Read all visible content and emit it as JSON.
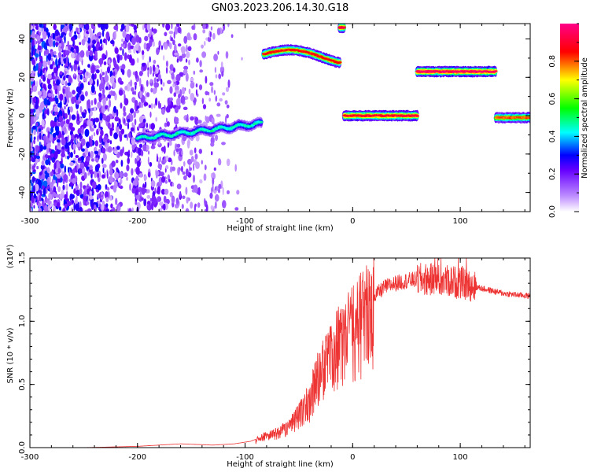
{
  "title": "GN03.2023.206.14.30.G18",
  "chart_data": [
    {
      "type": "heatmap",
      "xlabel": "Height of straight line (km)",
      "ylabel": "Frequency (Hz)",
      "xlim": [
        -300,
        165
      ],
      "ylim": [
        -50,
        48
      ],
      "x_ticks": [
        -300,
        -200,
        -100,
        0,
        100
      ],
      "y_ticks": [
        -40,
        -20,
        0,
        20,
        40
      ],
      "grid": false,
      "colorbar": {
        "label": "Normalized spectral amplitude",
        "range": [
          0,
          1
        ],
        "ticks": [
          "0.0",
          "0.2",
          "0.4",
          "0.6",
          "0.8"
        ],
        "colors": [
          "#ffffff",
          "#a64dff",
          "#0000ff",
          "#00ffff",
          "#00ff00",
          "#ffff00",
          "#ff0000",
          "#ff00aa"
        ]
      },
      "noise_region": {
        "x": [
          -300,
          -115
        ],
        "y": [
          -50,
          48
        ]
      },
      "features": [
        {
          "x": [
            -200,
            -85
          ],
          "y_start": -12,
          "y_end": -4,
          "amplitude": 0.45
        },
        {
          "x": [
            -83,
            -12
          ],
          "y_center": 32,
          "amplitude": 0.85
        },
        {
          "x": [
            -12,
            -8
          ],
          "y_center": 46,
          "amplitude": 0.9
        },
        {
          "x": [
            -8,
            60
          ],
          "y_center": 0,
          "amplitude": 0.9
        },
        {
          "x": [
            60,
            133
          ],
          "y_center": 23,
          "amplitude": 0.95
        },
        {
          "x": [
            133,
            165
          ],
          "y_center": -1,
          "amplitude": 0.8
        }
      ]
    },
    {
      "type": "line",
      "xlabel": "Height of straight line (km)",
      "ylabel": "SNR (10 * v/v)",
      "y_multiplier": "(x10⁴)",
      "xlim": [
        -300,
        165
      ],
      "ylim": [
        0,
        1.5
      ],
      "x_ticks": [
        -300,
        -200,
        -100,
        0,
        100
      ],
      "y_ticks": [
        "0.0",
        "0.5",
        "1.0",
        "1.5"
      ],
      "grid": false,
      "color": "#ee3333",
      "envelope": {
        "x": [
          -300,
          -250,
          -200,
          -160,
          -130,
          -110,
          -95,
          -80,
          -70,
          -60,
          -50,
          -40,
          -35,
          -30,
          -25,
          -20,
          -15,
          -10,
          -5,
          0,
          10,
          20,
          30,
          40,
          50,
          60,
          70,
          80,
          90,
          100,
          110,
          120,
          130,
          140,
          150,
          165
        ],
        "y": [
          0.0,
          0.0,
          0.01,
          0.03,
          0.02,
          0.03,
          0.05,
          0.1,
          0.13,
          0.18,
          0.28,
          0.4,
          0.55,
          0.65,
          0.72,
          0.8,
          0.85,
          0.9,
          0.95,
          1.0,
          1.1,
          1.2,
          1.27,
          1.3,
          1.32,
          1.33,
          1.33,
          1.32,
          1.32,
          1.3,
          1.28,
          1.26,
          1.24,
          1.22,
          1.21,
          1.2
        ]
      }
    }
  ]
}
